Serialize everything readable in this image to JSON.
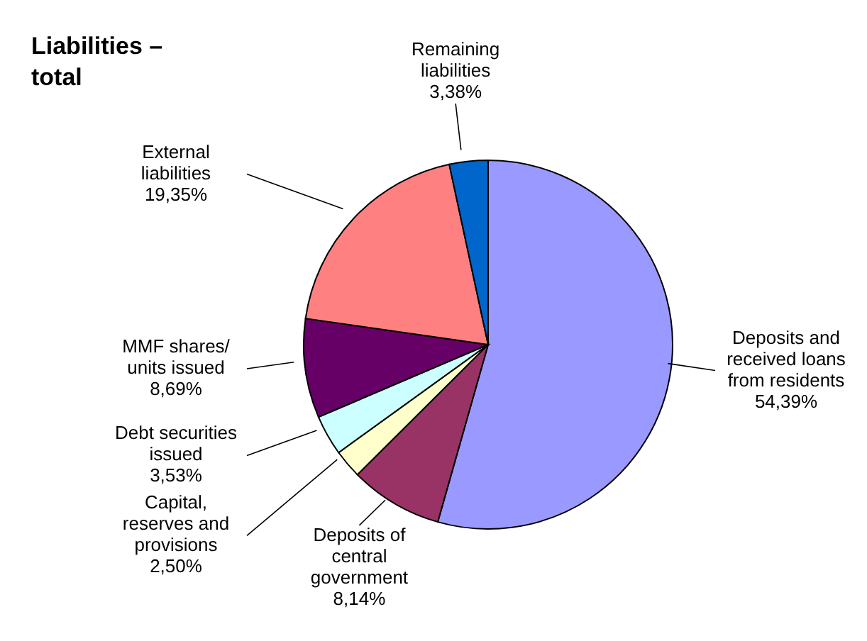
{
  "chart_data": {
    "type": "pie",
    "title": "Liabilities – total",
    "categories": [
      "Deposits and received loans from residents",
      "Deposits of central government",
      "Capital, reserves and provisions",
      "Debt securities issued",
      "MMF shares/ units issued",
      "External liabilities",
      "Remaining liabilities"
    ],
    "values": [
      54.39,
      8.14,
      2.5,
      3.53,
      8.69,
      19.35,
      3.38
    ],
    "value_labels": [
      "54,39%",
      "8,14%",
      "2,50%",
      "3,53%",
      "8,69%",
      "19,35%",
      "3,38%"
    ],
    "colors": [
      "#9999ff",
      "#993366",
      "#ffffcc",
      "#ccffff",
      "#660066",
      "#ff8080",
      "#0066cc"
    ],
    "legend": false
  }
}
